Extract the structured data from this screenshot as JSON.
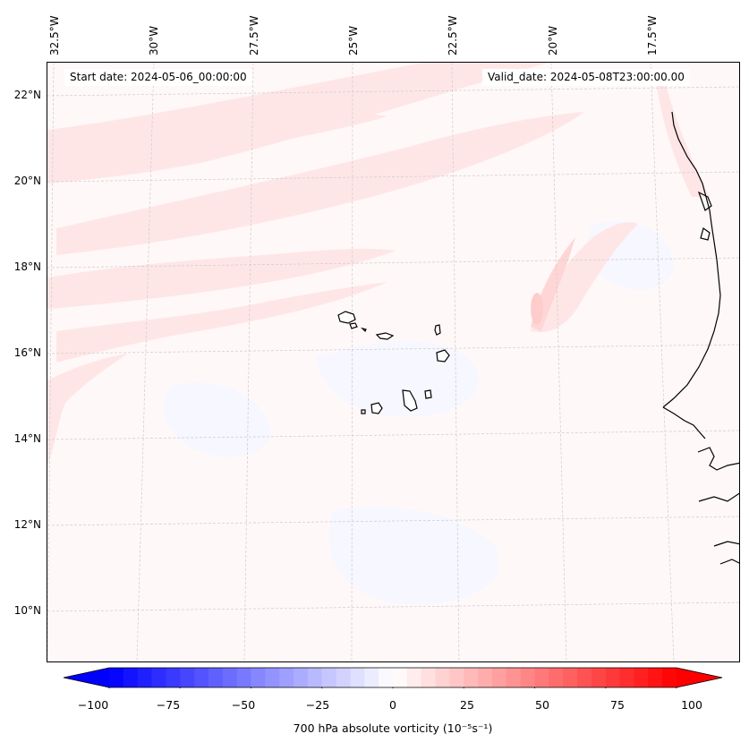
{
  "header": {
    "start_date": "Start date: 2024-05-06_00:00:00",
    "valid_date": "Valid_date: 2024-05-08T23:00:00.00"
  },
  "map": {
    "longitude_labels": [
      "32.5°W",
      "30°W",
      "27.5°W",
      "25°W",
      "22.5°W",
      "20°W",
      "17.5°W"
    ],
    "latitude_labels": [
      "22°N",
      "20°N",
      "18°N",
      "16°N",
      "14°N",
      "12°N",
      "10°N"
    ],
    "extent": {
      "lon_min": -32.6,
      "lon_max": -15.6,
      "lat_min": 8.9,
      "lat_max": 22.8
    },
    "features": [
      "Cape Verde islands",
      "West African coastline"
    ]
  },
  "colorbar": {
    "min": -100,
    "max": 100,
    "levels": 40,
    "tick_labels": [
      "−100",
      "−75",
      "−50",
      "−25",
      "0",
      "25",
      "50",
      "75",
      "100"
    ],
    "label": "700 hPa absolute vorticity (10⁻⁵s⁻¹)",
    "colormap": "bwr",
    "low_color": "#0000ff",
    "mid_color": "#ffffff",
    "high_color": "#ff0000"
  }
}
